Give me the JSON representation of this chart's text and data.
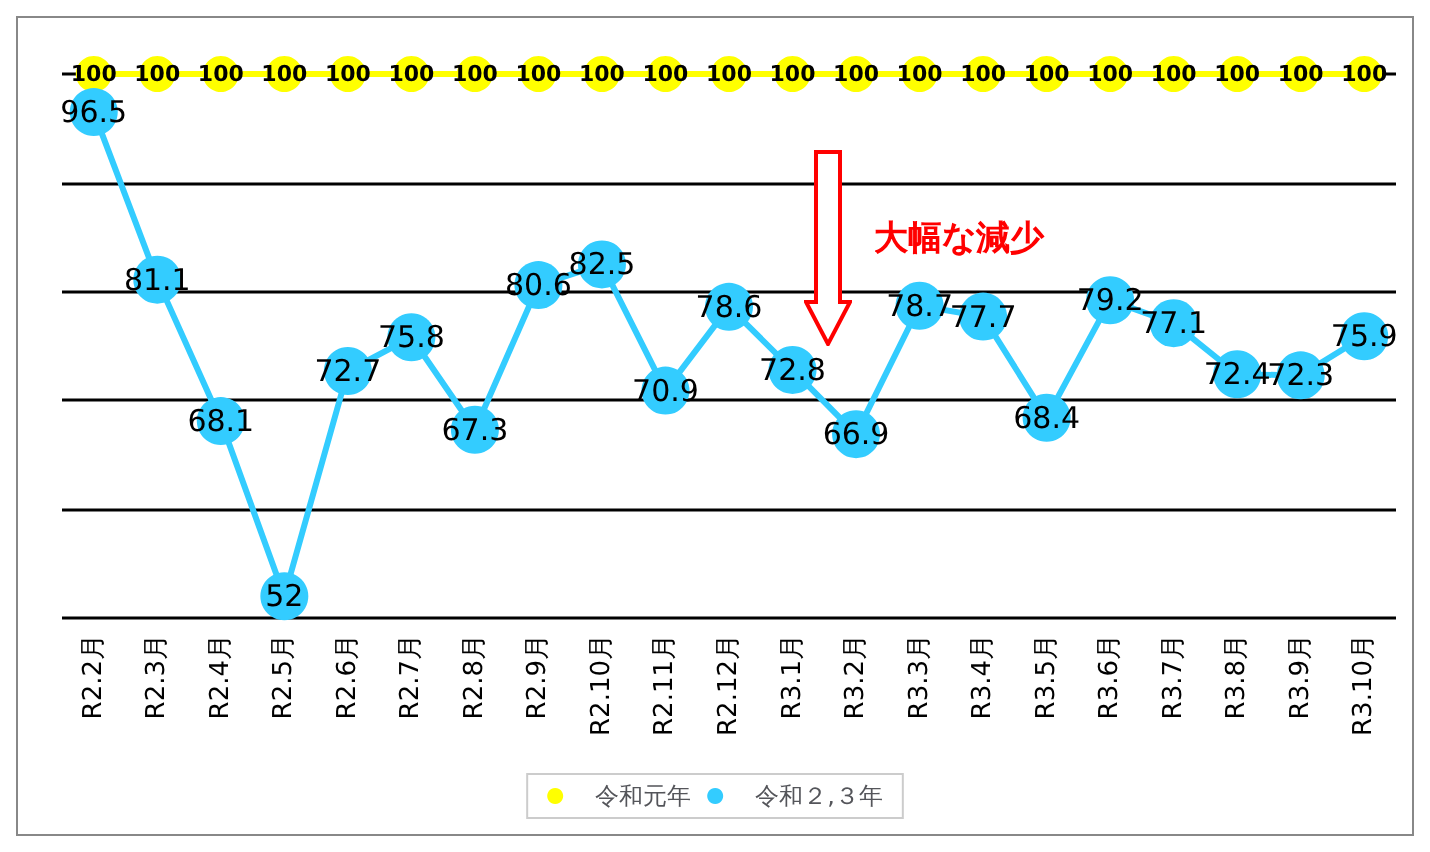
{
  "chart_data": {
    "type": "line",
    "categories": [
      "R2.2月",
      "R2.3月",
      "R2.4月",
      "R2.5月",
      "R2.6月",
      "R2.7月",
      "R2.8月",
      "R2.9月",
      "R2.10月",
      "R2.11月",
      "R2.12月",
      "R3.1月",
      "R3.2月",
      "R3.3月",
      "R3.4月",
      "R3.5月",
      "R3.6月",
      "R3.7月",
      "R3.8月",
      "R3.9月",
      "R3.10月"
    ],
    "series": [
      {
        "name": "令和元年",
        "color": "#ffff00",
        "values": [
          100,
          100,
          100,
          100,
          100,
          100,
          100,
          100,
          100,
          100,
          100,
          100,
          100,
          100,
          100,
          100,
          100,
          100,
          100,
          100,
          100
        ]
      },
      {
        "name": "令和２,３年",
        "color": "#33ccff",
        "values": [
          96.5,
          81.1,
          68.1,
          52,
          72.7,
          75.8,
          67.3,
          80.6,
          82.5,
          70.9,
          78.6,
          72.8,
          66.9,
          78.7,
          77.7,
          68.4,
          79.2,
          77.1,
          72.4,
          72.3,
          75.9
        ]
      }
    ],
    "ylim": [
      50,
      100
    ],
    "yticks": [
      {
        "value": 50,
        "label": null
      },
      {
        "value": 60,
        "label": null
      },
      {
        "value": 70,
        "label": null
      },
      {
        "value": 80,
        "label": null
      },
      {
        "value": 90,
        "label": null
      },
      {
        "value": 100,
        "label": null
      }
    ],
    "tick_labels": "x",
    "grid": "y",
    "legend": "bottom",
    "marker": "circle",
    "line_style": "solid",
    "data_labels": true,
    "annotations": [
      "大幅な減少"
    ]
  }
}
